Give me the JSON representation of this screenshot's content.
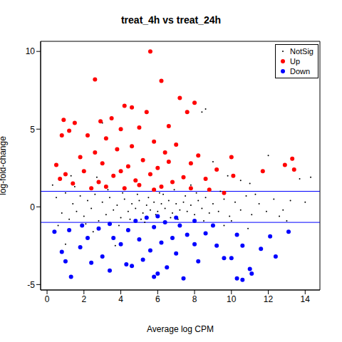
{
  "chart_data": {
    "type": "scatter",
    "title": "treat_4h vs treat_24h",
    "x_label": "Average log CPM",
    "y_label": "log-fold-change",
    "xlim": [
      -0.35,
      14.8
    ],
    "ylim": [
      -5.35,
      10.65
    ],
    "xticks": [
      0,
      2,
      4,
      6,
      8,
      10,
      12,
      14
    ],
    "yticks": [
      -5,
      0,
      5,
      10
    ],
    "legend": "top-right",
    "hlines": {
      "values": [
        1,
        -1
      ],
      "color": "#0000ff"
    },
    "series": [
      {
        "name": "NotSig",
        "color": "#000000",
        "marker": "dot",
        "x": [
          0.5,
          0.8,
          1.0,
          1.2,
          1.4,
          1.6,
          1.8,
          2.0,
          2.2,
          2.4,
          2.6,
          2.8,
          3.0,
          3.2,
          3.4,
          3.6,
          3.8,
          4.0,
          4.2,
          4.4,
          4.6,
          4.8,
          5.0,
          5.2,
          5.4,
          5.6,
          5.8,
          6.0,
          6.2,
          6.4,
          6.6,
          6.8,
          7.0,
          7.2,
          7.4,
          7.6,
          7.8,
          8.0,
          8.2,
          8.4,
          8.6,
          8.8,
          9.0,
          9.3,
          9.6,
          9.9,
          10.2,
          10.5,
          10.8,
          11.1,
          11.5,
          11.9,
          12.3,
          12.8,
          13.2,
          13.7,
          14.3,
          12.0,
          11.0,
          10.5,
          9.6,
          9.0,
          8.6,
          8.4,
          7.8,
          2.5,
          1.0,
          3.0,
          3.7,
          0.3,
          4.9,
          5.1,
          6.3,
          6.7,
          3.3,
          2.1,
          1.5,
          0.6,
          5.5,
          5.9,
          4.5,
          7.5,
          7.1,
          8.1,
          8.5,
          9.4,
          10.0,
          11.3,
          12.6,
          4.1,
          6.1,
          5.3,
          3.9,
          2.7,
          1.3,
          6.9,
          9.8,
          13.0,
          14.0,
          10.9
        ],
        "values": [
          0.6,
          -0.4,
          0.9,
          -0.8,
          0.2,
          -0.3,
          0.7,
          -0.6,
          0.4,
          -0.1,
          0.8,
          -0.9,
          0.3,
          -0.5,
          0.6,
          -0.2,
          0.1,
          -0.7,
          0.5,
          -0.3,
          0.2,
          -0.1,
          0.4,
          -0.4,
          0.1,
          -0.2,
          0.3,
          -0.3,
          0.2,
          -0.1,
          0.4,
          -0.4,
          0.2,
          -0.2,
          0.3,
          -0.3,
          0.1,
          -0.5,
          0.4,
          -0.1,
          0.6,
          -0.4,
          0.2,
          -0.3,
          0.5,
          -0.6,
          0.3,
          -0.2,
          0.7,
          -0.5,
          0.2,
          -0.3,
          0.5,
          -0.2,
          0.4,
          1.8,
          1.9,
          3.3,
          1.5,
          1.7,
          -1.2,
          2.9,
          6.3,
          6.1,
          1.4,
          -1.6,
          -2.4,
          5.4,
          -2.5,
          1.4,
          0.8,
          -0.8,
          0.8,
          -0.7,
          1.1,
          -1.1,
          1.3,
          -1.2,
          0.6,
          -0.5,
          -0.8,
          0.7,
          -0.8,
          0.9,
          -0.9,
          1.0,
          -0.9,
          0.8,
          -0.6,
          0.9,
          0.9,
          -1.0,
          -1.2,
          1.9,
          2.0,
          1.1,
          2.0,
          -0.9,
          0.3,
          -1.4
        ]
      },
      {
        "name": "Up",
        "color": "#ff0000",
        "marker": "circle",
        "x": [
          5.6,
          2.6,
          6.2,
          7.2,
          8.0,
          4.2,
          4.6,
          5.4,
          7.6,
          3.5,
          0.9,
          2.9,
          1.5,
          6.6,
          5.0,
          4.0,
          1.2,
          0.8,
          2.2,
          3.2,
          5.8,
          7.0,
          4.6,
          3.8,
          2.6,
          6.4,
          8.2,
          10.0,
          1.8,
          5.2,
          13.3,
          12.9,
          13.4,
          3.0,
          7.8,
          4.4,
          6.0,
          9.2,
          11.7,
          2.0,
          0.5,
          1.0,
          5.6,
          3.6,
          7.4,
          8.6,
          10.1,
          4.8,
          6.8,
          2.8,
          1.4,
          5.0,
          3.2,
          6.2,
          7.8,
          4.2,
          9.6,
          8.8,
          2.4,
          5.8,
          0.7,
          4.0,
          6.6
        ],
        "values": [
          10,
          8.2,
          8.1,
          7,
          6.7,
          6.5,
          6.4,
          6.1,
          6.1,
          5.7,
          5.6,
          5.5,
          5.4,
          5.2,
          5.1,
          5,
          4.9,
          4.6,
          4.6,
          4.4,
          4.2,
          4.0,
          3.9,
          3.7,
          3.5,
          3.5,
          3.3,
          3.2,
          3.2,
          3.0,
          3.1,
          2.7,
          2.4,
          2.8,
          2.8,
          2.6,
          2.5,
          2.4,
          2.3,
          2.3,
          2.7,
          2.1,
          2.1,
          2.0,
          1.9,
          1.8,
          2.0,
          1.7,
          1.6,
          1.6,
          1.5,
          1.4,
          1.3,
          1.3,
          1.2,
          1.2,
          0.9,
          1.1,
          1.2,
          1.1,
          1.8,
          2.3,
          2.9
        ]
      },
      {
        "name": "Down",
        "color": "#0000ff",
        "marker": "circle",
        "x": [
          6.0,
          5.8,
          7.4,
          10.6,
          10.3,
          11.1,
          11.0,
          1.3,
          3.4,
          4.3,
          4.6,
          6.5,
          2.4,
          1.0,
          5.2,
          8.2,
          9.6,
          12.4,
          10.0,
          3.0,
          7.0,
          0.8,
          5.6,
          1.8,
          4.0,
          6.2,
          8.0,
          9.2,
          10.6,
          11.6,
          13.1,
          0.4,
          2.2,
          3.6,
          5.0,
          6.8,
          7.6,
          8.6,
          10.3,
          12.1,
          1.2,
          2.8,
          4.4,
          5.8,
          7.2,
          9.0,
          3.4,
          6.4,
          4.8,
          8.0,
          1.9,
          6.0,
          5.4,
          7.0
        ],
        "values": [
          -4.3,
          -4.5,
          -4.6,
          -4.7,
          -4.6,
          -4.3,
          -4.0,
          -4.5,
          -4.1,
          -3.7,
          -3.8,
          -3.9,
          -3.6,
          -3.5,
          -3.4,
          -3.5,
          -3.3,
          -3.2,
          -3.3,
          -3.2,
          -3.0,
          -2.9,
          -2.8,
          -2.6,
          -2.4,
          -2.3,
          -2.4,
          -2.5,
          -2.5,
          -2.7,
          -1.6,
          -1.6,
          -2.0,
          -2.0,
          -2.1,
          -2.0,
          -1.8,
          -1.7,
          -1.8,
          -1.9,
          -1.5,
          -1.4,
          -1.5,
          -1.3,
          -1.2,
          -1.2,
          -1.1,
          -1.0,
          -0.9,
          -0.9,
          -1.2,
          -0.6,
          -0.7,
          -0.7
        ]
      }
    ]
  }
}
